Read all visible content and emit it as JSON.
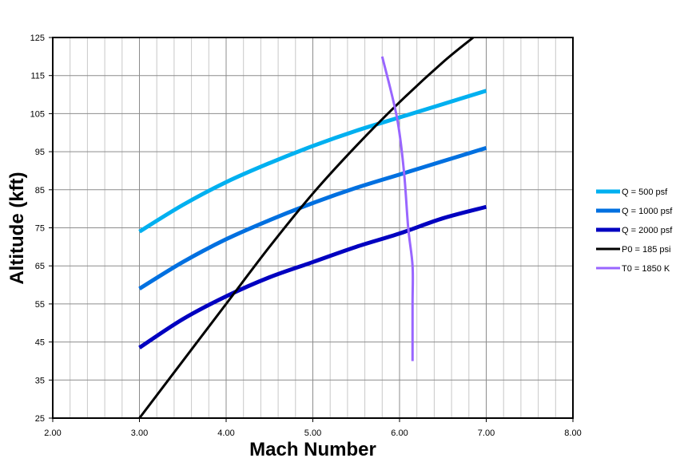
{
  "chart_data": {
    "type": "line",
    "title": "",
    "xlabel": "Mach Number",
    "ylabel": "Altitude (kft)",
    "xlim": [
      2.0,
      8.0
    ],
    "ylim": [
      25,
      125
    ],
    "x_ticks": [
      "2.00",
      "3.00",
      "4.00",
      "5.00",
      "6.00",
      "7.00",
      "8.00"
    ],
    "y_ticks": [
      "25",
      "35",
      "45",
      "55",
      "65",
      "75",
      "85",
      "95",
      "105",
      "115",
      "125"
    ],
    "grid": true,
    "legend_position": "right",
    "series": [
      {
        "name": "Q = 500 psf",
        "color": "#00B0F0",
        "x": [
          3.0,
          3.5,
          4.0,
          4.5,
          5.0,
          5.5,
          6.0,
          6.5,
          7.0
        ],
        "y": [
          74,
          81,
          87,
          92,
          96.5,
          100.5,
          104,
          107.5,
          111
        ]
      },
      {
        "name": "Q = 1000 psf",
        "color": "#0070E0",
        "x": [
          3.0,
          3.5,
          4.0,
          4.5,
          5.0,
          5.5,
          6.0,
          6.5,
          7.0
        ],
        "y": [
          59,
          66,
          72,
          77,
          81.5,
          85.5,
          89,
          92.5,
          96
        ]
      },
      {
        "name": "Q = 2000 psf",
        "color": "#0000C0",
        "x": [
          3.0,
          3.5,
          4.0,
          4.5,
          5.0,
          5.5,
          6.0,
          6.5,
          7.0
        ],
        "y": [
          43.5,
          51,
          57,
          62,
          66,
          70,
          73.5,
          77.5,
          80.5
        ]
      },
      {
        "name": "P0 = 185 psi",
        "color": "#000000",
        "x": [
          3.0,
          3.5,
          4.0,
          4.5,
          5.0,
          5.5,
          6.0,
          6.5,
          6.85
        ],
        "y": [
          25,
          40,
          55,
          70,
          84,
          96.5,
          108,
          118.5,
          125
        ]
      },
      {
        "name": "T0 = 1850 K",
        "color": "#9966FF",
        "x": [
          6.15,
          6.15,
          6.15,
          6.1,
          6.05,
          5.97,
          5.8
        ],
        "y": [
          40,
          55,
          65,
          75,
          90,
          104,
          120
        ]
      }
    ]
  }
}
